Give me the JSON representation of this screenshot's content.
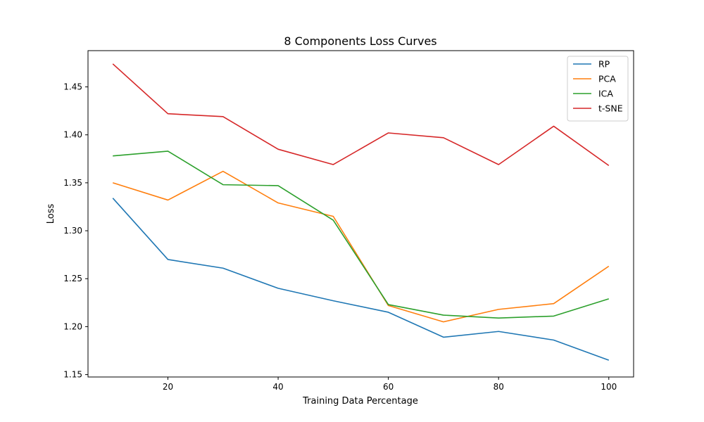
{
  "chart_data": {
    "type": "line",
    "title": "8 Components Loss Curves",
    "xlabel": "Training Data Percentage",
    "ylabel": "Loss",
    "x": [
      10,
      20,
      30,
      40,
      50,
      60,
      70,
      80,
      90,
      100
    ],
    "xlim": [
      5.5,
      104.5
    ],
    "ylim": [
      1.1475,
      1.4878
    ],
    "xticks": [
      20,
      40,
      60,
      80,
      100
    ],
    "xtick_labels": [
      "20",
      "40",
      "60",
      "80",
      "100"
    ],
    "yticks": [
      1.15,
      1.2,
      1.25,
      1.3,
      1.35,
      1.4,
      1.45
    ],
    "ytick_labels": [
      "1.15",
      "1.20",
      "1.25",
      "1.30",
      "1.35",
      "1.40",
      "1.45"
    ],
    "grid": false,
    "legend_position": "top-right",
    "series": [
      {
        "name": "RP",
        "color": "#1f77b4",
        "values": [
          1.334,
          1.27,
          1.261,
          1.24,
          1.227,
          1.215,
          1.189,
          1.195,
          1.186,
          1.165
        ]
      },
      {
        "name": "PCA",
        "color": "#ff7f0e",
        "values": [
          1.35,
          1.332,
          1.362,
          1.329,
          1.315,
          1.222,
          1.205,
          1.218,
          1.224,
          1.263
        ]
      },
      {
        "name": "ICA",
        "color": "#2ca02c",
        "values": [
          1.378,
          1.383,
          1.348,
          1.347,
          1.311,
          1.223,
          1.212,
          1.209,
          1.211,
          1.229
        ]
      },
      {
        "name": "t-SNE",
        "color": "#d62728",
        "values": [
          1.474,
          1.422,
          1.419,
          1.385,
          1.369,
          1.402,
          1.397,
          1.369,
          1.409,
          1.368
        ]
      }
    ]
  }
}
